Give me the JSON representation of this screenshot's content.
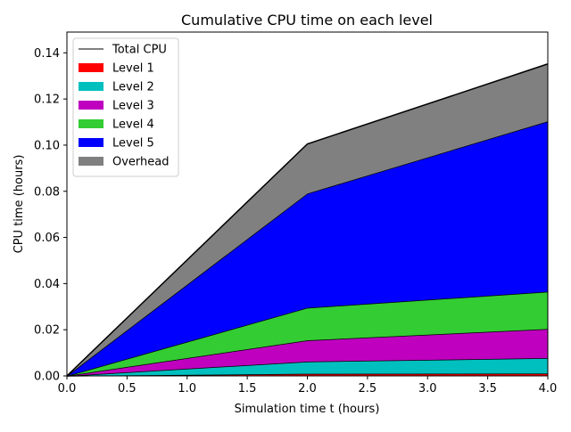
{
  "chart_data": {
    "type": "area",
    "title": "Cumulative CPU time on each level",
    "xlabel": "Simulation time t (hours)",
    "ylabel": "CPU time (hours)",
    "xlim": [
      0.0,
      4.0
    ],
    "ylim": [
      0.0,
      0.149
    ],
    "x_ticks": [
      "0.0",
      "0.5",
      "1.0",
      "1.5",
      "2.0",
      "2.5",
      "3.0",
      "3.5",
      "4.0"
    ],
    "y_ticks": [
      "0.00",
      "0.02",
      "0.04",
      "0.06",
      "0.08",
      "0.10",
      "0.12",
      "0.14"
    ],
    "grid": false,
    "legend_position": "top-left",
    "x": [
      0.0,
      2.0,
      4.0
    ],
    "total_cpu": {
      "name": "Total CPU",
      "color": "#000000",
      "values": [
        0.0,
        0.1005,
        0.1352
      ]
    },
    "series": [
      {
        "name": "Level 1",
        "color": "#ff0000",
        "cumulative": [
          0.0,
          0.0009,
          0.001
        ]
      },
      {
        "name": "Level 2",
        "color": "#00bfbf",
        "cumulative": [
          0.0,
          0.0062,
          0.0077
        ]
      },
      {
        "name": "Level 3",
        "color": "#bf00bf",
        "cumulative": [
          0.0,
          0.0154,
          0.0203
        ]
      },
      {
        "name": "Level 4",
        "color": "#33cc33",
        "cumulative": [
          0.0,
          0.0295,
          0.0365
        ]
      },
      {
        "name": "Level 5",
        "color": "#0000ff",
        "cumulative": [
          0.0,
          0.079,
          0.1103
        ]
      },
      {
        "name": "Overhead",
        "color": "#808080",
        "cumulative": [
          0.0,
          0.1005,
          0.1352
        ]
      }
    ]
  }
}
